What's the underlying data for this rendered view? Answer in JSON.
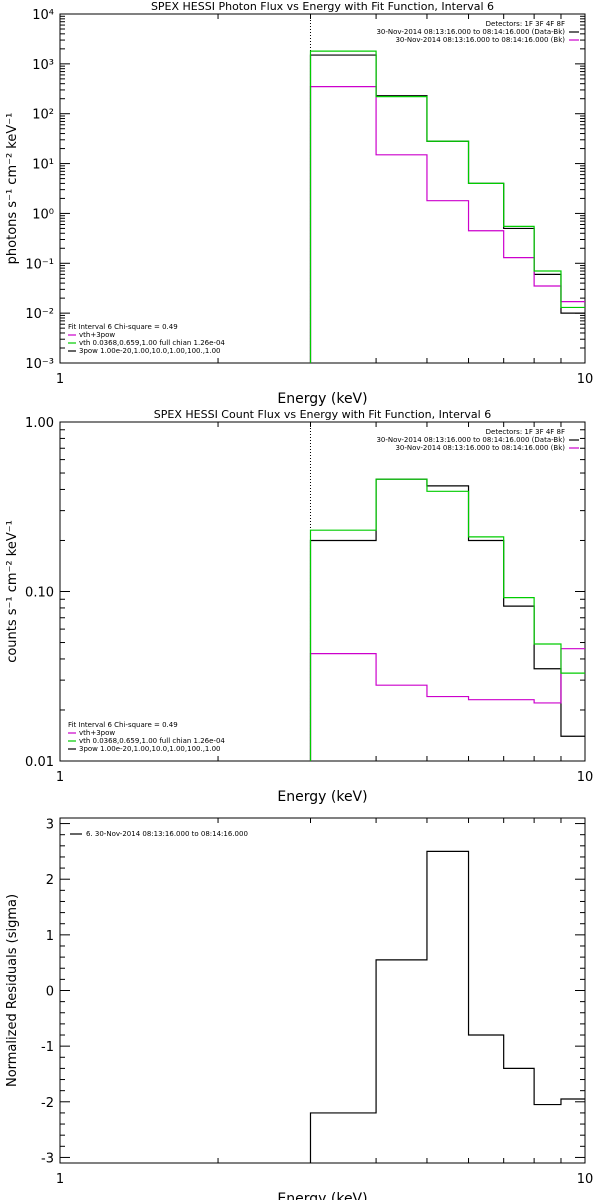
{
  "colors": {
    "black": "#000000",
    "green": "#00cc00",
    "magenta": "#cc00cc",
    "background": "#ffffff"
  },
  "chart_data": [
    {
      "type": "line",
      "id": "photon",
      "title": "SPEX HESSI Photon Flux vs Energy with Fit Function, Interval 6",
      "xlabel": "Energy (keV)",
      "ylabel": "photons s⁻¹ cm⁻² keV⁻¹",
      "xscale": "log",
      "yscale": "log",
      "xlim": [
        1,
        10
      ],
      "ylim": [
        0.001,
        10000
      ],
      "x_ticks": [
        "1",
        "10"
      ],
      "y_ticks": [
        "10⁻³",
        "10⁻²",
        "10⁻¹",
        "10⁰",
        "10¹",
        "10²",
        "10³",
        "10⁴"
      ],
      "grid": false,
      "vline_x": 3.0,
      "bin_edges": [
        3.0,
        4.0,
        5.0,
        6.0,
        7.0,
        8.0,
        9.0,
        10.0
      ],
      "series": [
        {
          "name": "",
          "color_key": "black",
          "values": [
            1500,
            230,
            28,
            4.0,
            0.5,
            0.06,
            0.01
          ]
        },
        {
          "name": "vth+3pow",
          "color_key": "magenta",
          "values": [
            350,
            15,
            1.8,
            0.45,
            0.13,
            0.035,
            0.017
          ]
        },
        {
          "name": "",
          "color_key": "green",
          "values": [
            1800,
            220,
            28,
            4.0,
            0.55,
            0.07,
            0.013
          ]
        }
      ],
      "legend_top_right": [
        {
          "text": "Detectors: 1F 3F 4F 8F",
          "color_key": "black",
          "swatch": false
        },
        {
          "text": "30-Nov-2014 08:13:16.000 to 08:14:16.000 (Data-Bk)",
          "color_key": "black",
          "swatch": true
        },
        {
          "text": "30-Nov-2014 08:13:16.000 to 08:14:16.000 (Bk)",
          "color_key": "magenta",
          "swatch": true
        }
      ],
      "legend_bottom_left": [
        {
          "text": "Fit Interval 6   Chi-square = 0.49",
          "color_key": "black",
          "swatch": false
        },
        {
          "text": "vth+3pow",
          "color_key": "magenta",
          "swatch": true
        },
        {
          "text": "vth 0.0368,0.659,1.00  full chian 1.26e-04",
          "color_key": "green",
          "swatch": true
        },
        {
          "text": "3pow 1.00e-20,1.00,10.0,1.00,100.,1.00",
          "color_key": "black",
          "swatch": true
        }
      ]
    },
    {
      "type": "line",
      "id": "count",
      "title": "SPEX HESSI Count Flux vs Energy with Fit Function, Interval 6",
      "xlabel": "Energy (keV)",
      "ylabel": "counts s⁻¹ cm⁻² keV⁻¹",
      "xscale": "log",
      "yscale": "log",
      "xlim": [
        1,
        10
      ],
      "ylim": [
        0.01,
        1.0
      ],
      "x_ticks": [
        "1",
        "10"
      ],
      "y_ticks": [
        "0.01",
        "0.10",
        "1.00"
      ],
      "grid": false,
      "vline_x": 3.0,
      "bin_edges": [
        3.0,
        4.0,
        5.0,
        6.0,
        7.0,
        8.0,
        9.0,
        10.0
      ],
      "series": [
        {
          "name": "",
          "color_key": "black",
          "values": [
            0.2,
            0.46,
            0.42,
            0.2,
            0.082,
            0.035,
            0.014
          ]
        },
        {
          "name": "vth+3pow",
          "color_key": "magenta",
          "values": [
            0.043,
            0.028,
            0.024,
            0.023,
            0.023,
            0.022,
            0.046
          ]
        },
        {
          "name": "",
          "color_key": "green",
          "values": [
            0.23,
            0.46,
            0.39,
            0.21,
            0.092,
            0.049,
            0.033
          ]
        }
      ],
      "legend_top_right": [
        {
          "text": "Detectors: 1F 3F 4F 8F",
          "color_key": "black",
          "swatch": false
        },
        {
          "text": "30-Nov-2014 08:13:16.000 to 08:14:16.000 (Data-Bk)",
          "color_key": "black",
          "swatch": true
        },
        {
          "text": "30-Nov-2014 08:13:16.000 to 08:14:16.000 (Bk)",
          "color_key": "magenta",
          "swatch": true
        }
      ],
      "legend_bottom_left": [
        {
          "text": "Fit Interval 6   Chi-square = 0.49",
          "color_key": "black",
          "swatch": false
        },
        {
          "text": "vth+3pow",
          "color_key": "magenta",
          "swatch": true
        },
        {
          "text": "vth 0.0368,0.659,1.00  full chian 1.26e-04",
          "color_key": "green",
          "swatch": true
        },
        {
          "text": "3pow 1.00e-20,1.00,10.0,1.00,100.,1.00",
          "color_key": "black",
          "swatch": true
        }
      ]
    },
    {
      "type": "line",
      "id": "resid",
      "title": "",
      "xlabel": "Energy (keV)",
      "ylabel": "Normalized Residuals (sigma)",
      "xscale": "log",
      "yscale": "linear",
      "xlim": [
        1,
        10
      ],
      "ylim": [
        -3.1,
        3.1
      ],
      "x_ticks": [
        "1",
        "10"
      ],
      "y_ticks": [
        "-3",
        "-2",
        "-1",
        "0",
        "1",
        "2",
        "3"
      ],
      "grid": false,
      "bin_edges": [
        3.0,
        4.0,
        5.0,
        6.0,
        7.0,
        8.0,
        9.0,
        10.0
      ],
      "series": [
        {
          "name": "6. 30-Nov-2014 08:13:16.000 to 08:14:16.000",
          "color_key": "black",
          "values": [
            -2.2,
            0.55,
            2.5,
            -0.8,
            -1.4,
            -2.05,
            -1.95
          ]
        }
      ],
      "legend_top_left": [
        {
          "text": "6. 30-Nov-2014 08:13:16.000 to 08:14:16.000",
          "color_key": "black",
          "swatch": true
        }
      ]
    }
  ]
}
